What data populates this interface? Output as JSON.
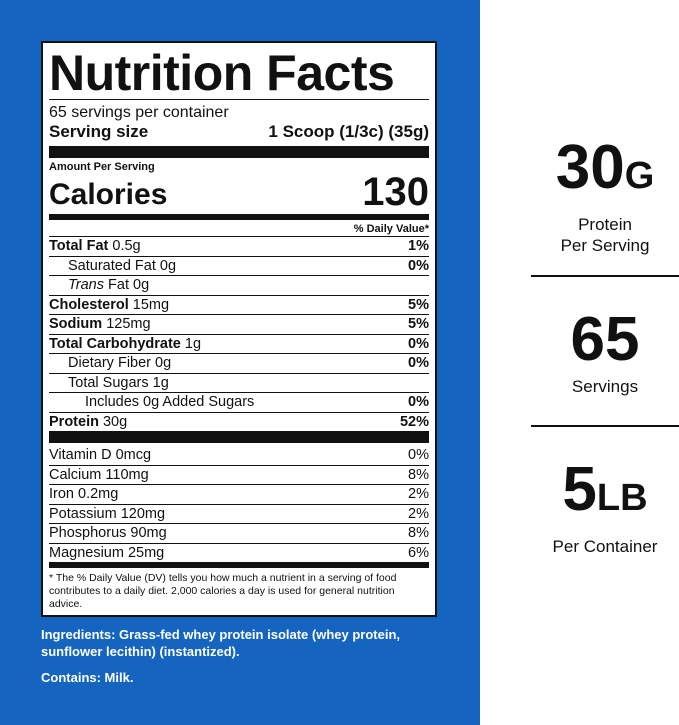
{
  "label": {
    "title": "Nutrition Facts",
    "servings_per_container": "65 servings per container",
    "serving_size_label": "Serving size",
    "serving_size_value": "1 Scoop (1/3c) (35g)",
    "amount_per_serving": "Amount Per Serving",
    "calories_label": "Calories",
    "calories_value": "130",
    "dv_header": "% Daily Value*",
    "nutrients": [
      {
        "name": "Total Fat",
        "amount": "0.5g",
        "dv": "1%"
      },
      {
        "name": "Saturated Fat",
        "amount": "0g",
        "dv": "0%"
      },
      {
        "name_italic": "Trans",
        "name_rest": "Fat",
        "amount": "0g"
      },
      {
        "name": "Cholesterol",
        "amount": "15mg",
        "dv": "5%"
      },
      {
        "name": "Sodium",
        "amount": "125mg",
        "dv": "5%"
      },
      {
        "name": "Total Carbohydrate",
        "amount": "1g",
        "dv": "0%"
      },
      {
        "name": "Dietary Fiber",
        "amount": "0g",
        "dv": "0%"
      },
      {
        "name": "Total Sugars",
        "amount": "1g"
      },
      {
        "text": "Includes 0g Added Sugars",
        "dv": "0%"
      },
      {
        "name": "Protein",
        "amount": "30g",
        "dv": "52%"
      }
    ],
    "vitamins": [
      {
        "text": "Vitamin D 0mcg",
        "dv": "0%"
      },
      {
        "text": "Calcium 110mg",
        "dv": "8%"
      },
      {
        "text": "Iron 0.2mg",
        "dv": "2%"
      },
      {
        "text": "Potassium 120mg",
        "dv": "2%"
      },
      {
        "text": "Phosphorus 90mg",
        "dv": "8%"
      },
      {
        "text": "Magnesium 25mg",
        "dv": "6%"
      }
    ],
    "footnote": "* The % Daily Value (DV) tells you how much a nutrient in a serving of food contributes to a daily diet. 2,000 calories a day is used for general nutrition advice."
  },
  "ingredients": "Ingredients: Grass-fed whey protein isolate (whey protein, sunflower lecithin) (instantized).",
  "contains": "Contains: Milk.",
  "stats": [
    {
      "value": "30",
      "unit": "G",
      "label_line1": "Protein",
      "label_line2": "Per Serving"
    },
    {
      "value": "65",
      "unit": "",
      "label_line1": "Servings",
      "label_line2": ""
    },
    {
      "value": "5",
      "unit": "LB",
      "label_line1": "Per Container",
      "label_line2": ""
    }
  ],
  "colors": {
    "panel_blue": "#1565c0",
    "text_dark": "#111111"
  }
}
